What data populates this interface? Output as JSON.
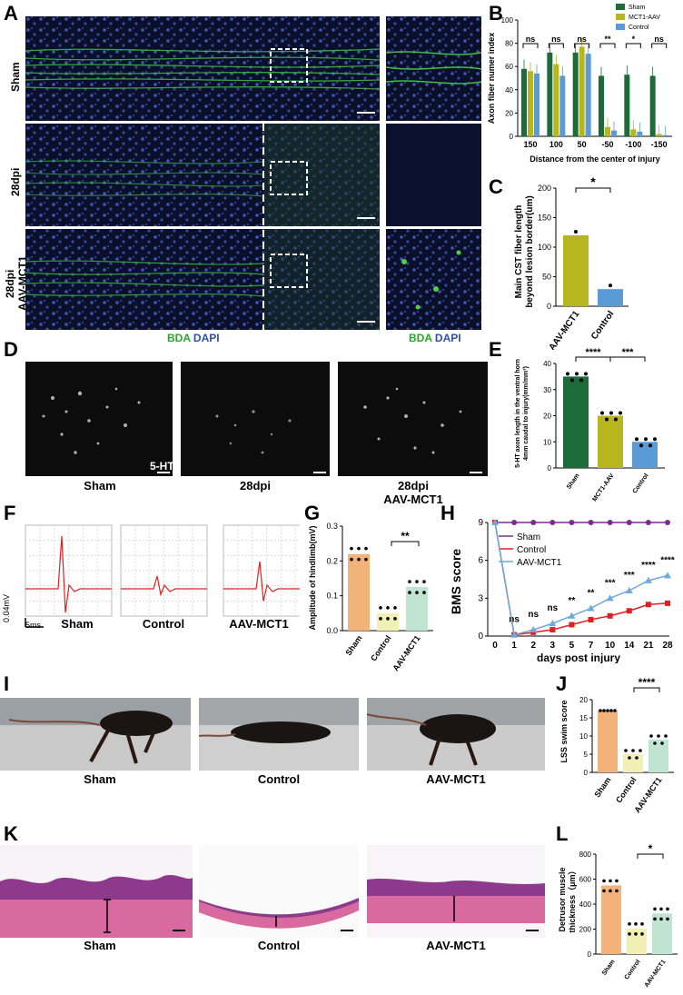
{
  "panels": {
    "A": {
      "letter": "A",
      "row_labels": [
        "Sham",
        "28dpi",
        "28dpi\nAAV-MCT1"
      ],
      "legend_left": {
        "bda": "BDA",
        "dapi": "DAPI"
      },
      "legend_right": {
        "bda": "BDA",
        "dapi": "DAPI"
      }
    },
    "B": {
      "letter": "B"
    },
    "C": {
      "letter": "C"
    },
    "D": {
      "letter": "D",
      "stain": "5-HT",
      "captions": [
        "Sham",
        "28dpi",
        "28dpi\nAAV-MCT1"
      ]
    },
    "E": {
      "letter": "E"
    },
    "F": {
      "letter": "F",
      "scale_v": "0.04mV",
      "scale_t": "5ms",
      "captions": [
        "Sham",
        "Control",
        "AAV-MCT1"
      ]
    },
    "G": {
      "letter": "G"
    },
    "H": {
      "letter": "H"
    },
    "I": {
      "letter": "I",
      "captions": [
        "Sham",
        "Control",
        "AAV-MCT1"
      ]
    },
    "J": {
      "letter": "J"
    },
    "K": {
      "letter": "K",
      "captions": [
        "Sham",
        "Control",
        "AAV-MCT1"
      ]
    },
    "L": {
      "letter": "L"
    }
  },
  "colors": {
    "sham_dark_green": "#1e6b3a",
    "mct1_olive": "#b7b61e",
    "control_blue": "#5b9bd5",
    "orange": "#f2b27a",
    "pale_yellow": "#f2efb4",
    "teal_light": "#bfe5d2",
    "purple": "#7b2d8e",
    "red": "#e02020",
    "light_blue": "#6fa8dc"
  },
  "chart_data": [
    {
      "id": "B",
      "type": "bar",
      "ylabel": "Axon fiber numer index",
      "xlabel": "Distance from the center of injury",
      "categories": [
        "150",
        "100",
        "50",
        "-50",
        "-100",
        "-150"
      ],
      "ylim": [
        0,
        100
      ],
      "yticks": [
        "0",
        "20",
        "40",
        "60",
        "80",
        "100"
      ],
      "series": [
        {
          "name": "Sham",
          "values": [
            58,
            72,
            72,
            52,
            53,
            52
          ]
        },
        {
          "name": "MCT1-AAV",
          "values": [
            56,
            62,
            77,
            8,
            6,
            2
          ]
        },
        {
          "name": "Control",
          "values": [
            54,
            52,
            71,
            5,
            4,
            1
          ]
        }
      ],
      "significance": [
        "ns",
        "ns",
        "ns",
        "**",
        "*",
        "ns"
      ]
    },
    {
      "id": "C",
      "type": "bar",
      "ylabel": "Main CST fiber length\nbeyond lesion border(um)",
      "categories": [
        "AAV-MCT1",
        "Control"
      ],
      "values": [
        120,
        29
      ],
      "ylim": [
        0,
        200
      ],
      "yticks": [
        "0",
        "50",
        "100",
        "150",
        "200"
      ],
      "significance": "*"
    },
    {
      "id": "E",
      "type": "bar",
      "ylabel": "5-HT axon length in the ventral horn\n4mm caudal to injury(mm/mm³)",
      "categories": [
        "Sham",
        "MCT1-AAV",
        "Control"
      ],
      "values": [
        35,
        20,
        10
      ],
      "ylim": [
        0,
        40
      ],
      "yticks": [
        "0",
        "10",
        "20",
        "30",
        "40"
      ],
      "significance": [
        "****",
        "***"
      ]
    },
    {
      "id": "G",
      "type": "bar",
      "ylabel": "Amplitude of hindlimb(mV)",
      "categories": [
        "Sham",
        "Control",
        "AAV-MCT1"
      ],
      "values": [
        0.22,
        0.05,
        0.125
      ],
      "ylim": [
        0,
        0.3
      ],
      "yticks": [
        "0.0",
        "0.1",
        "0.2",
        "0.3"
      ],
      "significance": "**"
    },
    {
      "id": "H",
      "type": "line",
      "ylabel": "BMS score",
      "xlabel": "days post injury",
      "x": [
        "0",
        "1",
        "2",
        "3",
        "5",
        "7",
        "10",
        "14",
        "21",
        "28"
      ],
      "ylim": [
        0,
        9
      ],
      "yticks": [
        "0",
        "3",
        "6",
        "9"
      ],
      "series": [
        {
          "name": "Sham",
          "values": [
            9,
            9,
            9,
            9,
            9,
            9,
            9,
            9,
            9,
            9
          ]
        },
        {
          "name": "Control",
          "values": [
            9,
            0.1,
            0.3,
            0.5,
            0.9,
            1.3,
            1.6,
            2.0,
            2.5,
            2.6
          ]
        },
        {
          "name": "AAV-MCT1",
          "values": [
            9,
            0.1,
            0.5,
            1.0,
            1.6,
            2.2,
            3.0,
            3.6,
            4.4,
            4.8
          ]
        }
      ],
      "significance": [
        "",
        "ns",
        "ns",
        "ns",
        "**",
        "**",
        "***",
        "***",
        "****",
        "****"
      ]
    },
    {
      "id": "J",
      "type": "bar",
      "ylabel": "LSS swim score",
      "categories": [
        "Sham",
        "Control",
        "AAV-MCT1"
      ],
      "values": [
        17,
        5,
        9
      ],
      "ylim": [
        0,
        20
      ],
      "yticks": [
        "0",
        "5",
        "10",
        "15",
        "20"
      ],
      "significance": "****"
    },
    {
      "id": "L",
      "type": "bar",
      "ylabel": "Detrusor muscle\nthickness（μm）",
      "categories": [
        "Sham",
        "Control",
        "AAV-MCT1"
      ],
      "values": [
        550,
        205,
        325
      ],
      "ylim": [
        0,
        800
      ],
      "yticks": [
        "0",
        "200",
        "400",
        "600",
        "800"
      ],
      "significance": "*"
    }
  ]
}
